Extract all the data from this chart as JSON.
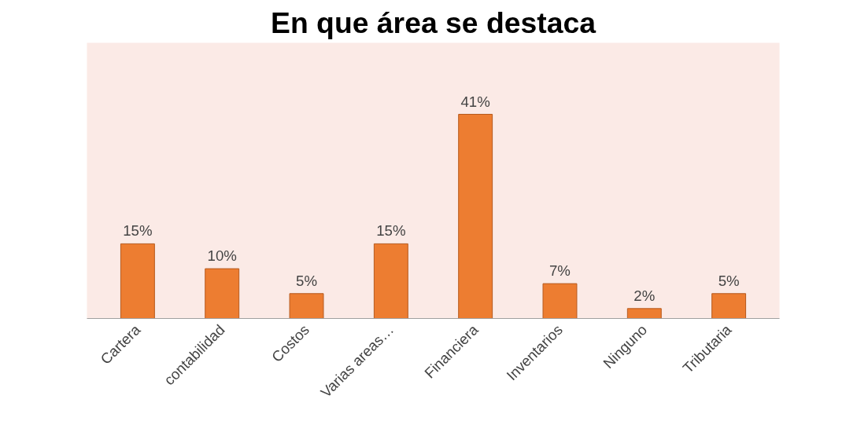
{
  "chart_data": {
    "type": "bar",
    "title": "En que área se destaca",
    "categories": [
      "Cartera",
      "contabilidad",
      "Costos",
      "Varias areas…",
      "Financiera",
      "Inventarios",
      "Ninguno",
      "Tributaria"
    ],
    "values": [
      15,
      10,
      5,
      15,
      41,
      7,
      2,
      5
    ],
    "value_labels": [
      "15%",
      "10%",
      "5%",
      "15%",
      "41%",
      "7%",
      "2%",
      "5%"
    ],
    "color": "#ed7d31",
    "grid": false
  }
}
